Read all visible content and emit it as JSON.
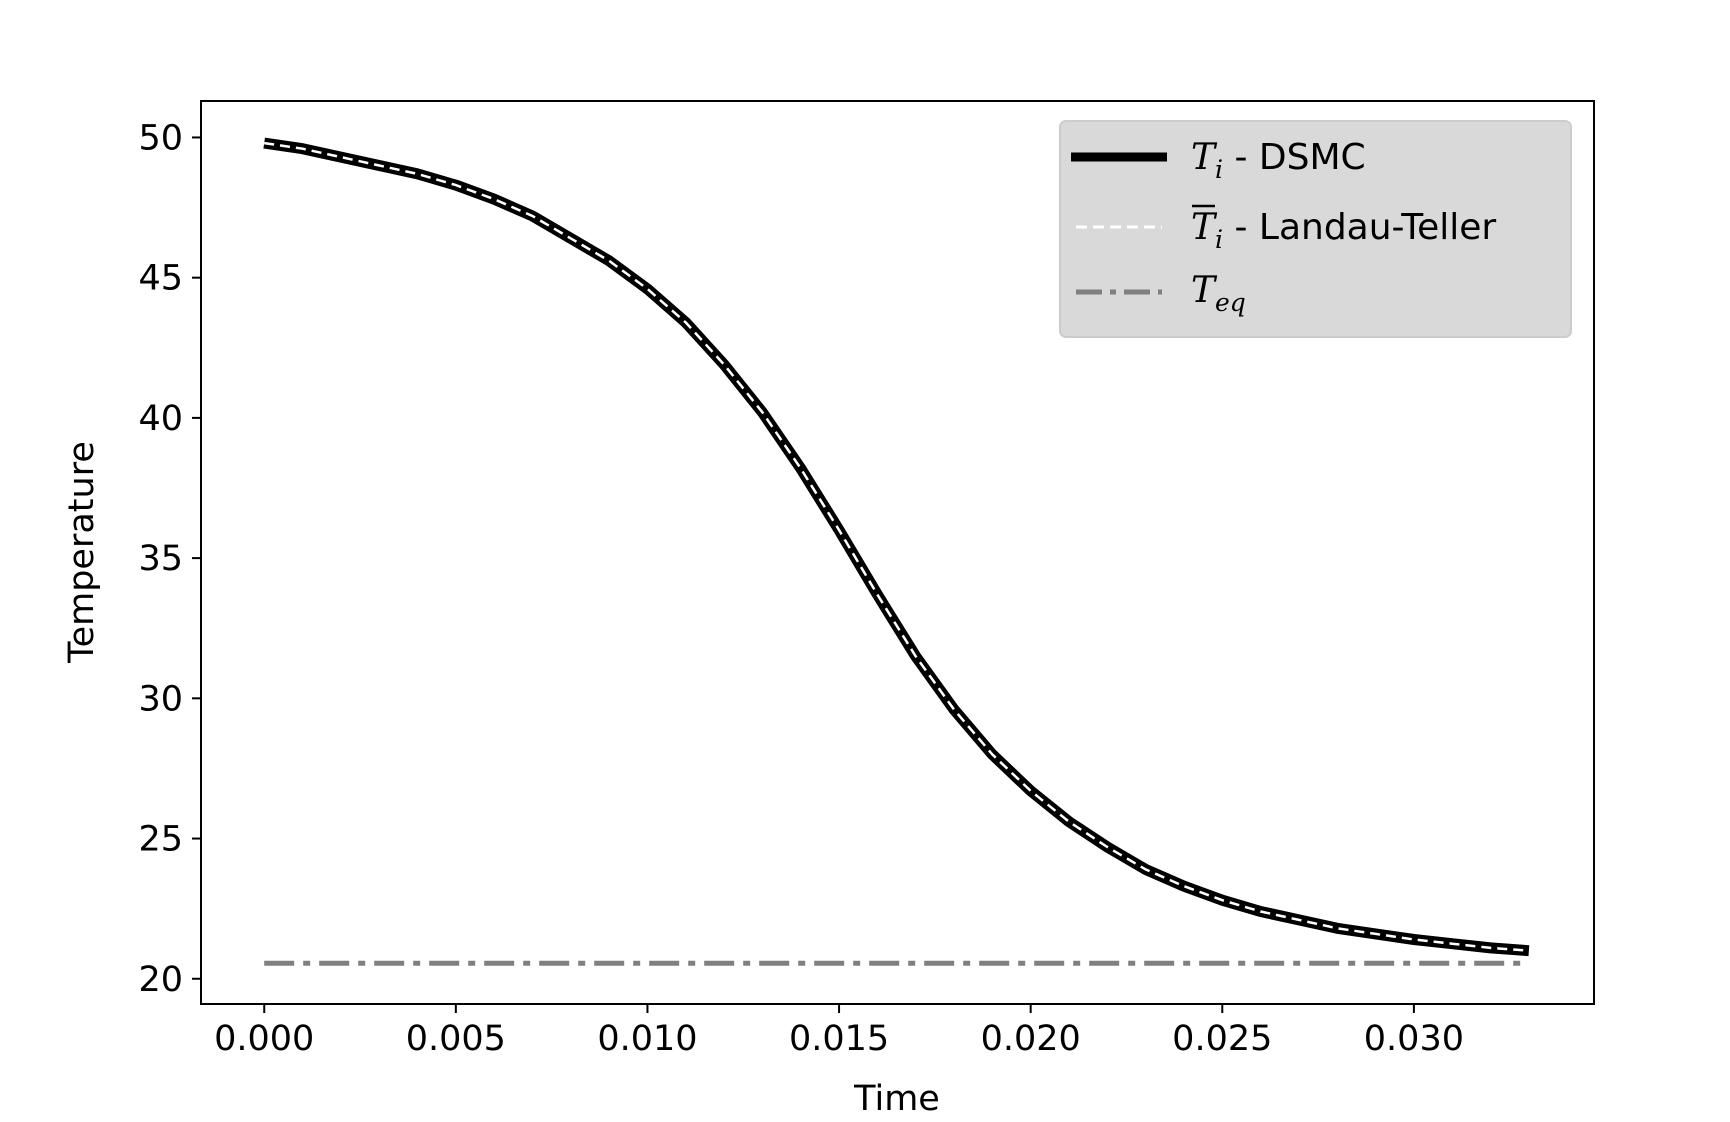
{
  "chart_data": {
    "type": "line",
    "xlabel": "Time",
    "ylabel": "Temperature",
    "xlim": [
      -0.00165,
      0.0347
    ],
    "ylim": [
      19.1,
      51.3
    ],
    "xticks": [
      0.0,
      0.005,
      0.01,
      0.015,
      0.02,
      0.025,
      0.03
    ],
    "xtick_labels": [
      "0.000",
      "0.005",
      "0.010",
      "0.015",
      "0.020",
      "0.025",
      "0.030"
    ],
    "yticks": [
      20,
      25,
      30,
      35,
      40,
      45,
      50
    ],
    "ytick_labels": [
      "20",
      "25",
      "30",
      "35",
      "40",
      "45",
      "50"
    ],
    "grid": false,
    "legend_placement": "upper right",
    "series": [
      {
        "name": "T_i - DSMC",
        "legend": {
          "symbol": "T",
          "sub": "i",
          "text": " - DSMC"
        },
        "color": "#000000",
        "style": "solid-thick",
        "x": [
          0.0,
          0.001,
          0.002,
          0.003,
          0.004,
          0.005,
          0.006,
          0.007,
          0.008,
          0.009,
          0.01,
          0.011,
          0.012,
          0.013,
          0.014,
          0.015,
          0.016,
          0.017,
          0.018,
          0.019,
          0.02,
          0.021,
          0.022,
          0.023,
          0.024,
          0.025,
          0.026,
          0.027,
          0.028,
          0.029,
          0.03,
          0.031,
          0.032,
          0.033
        ],
        "y": [
          49.8,
          49.6,
          49.3,
          49.0,
          48.7,
          48.3,
          47.8,
          47.2,
          46.4,
          45.6,
          44.6,
          43.4,
          41.9,
          40.2,
          38.2,
          36.0,
          33.7,
          31.5,
          29.6,
          28.0,
          26.7,
          25.6,
          24.7,
          23.9,
          23.3,
          22.8,
          22.4,
          22.1,
          21.8,
          21.6,
          21.4,
          21.25,
          21.1,
          21.0
        ]
      },
      {
        "name": "T̄_i - Landau-Teller",
        "legend": {
          "symbol": "T",
          "sub": "i",
          "text": " - Landau-Teller",
          "overline": true
        },
        "color": "#ffffff",
        "style": "dashed",
        "x": [
          0.0,
          0.001,
          0.002,
          0.003,
          0.004,
          0.005,
          0.006,
          0.007,
          0.008,
          0.009,
          0.01,
          0.011,
          0.012,
          0.013,
          0.014,
          0.015,
          0.016,
          0.017,
          0.018,
          0.019,
          0.02,
          0.021,
          0.022,
          0.023,
          0.024,
          0.025,
          0.026,
          0.027,
          0.028,
          0.029,
          0.03,
          0.031,
          0.032,
          0.033
        ],
        "y": [
          49.8,
          49.6,
          49.3,
          49.0,
          48.7,
          48.3,
          47.8,
          47.2,
          46.4,
          45.6,
          44.6,
          43.4,
          41.9,
          40.2,
          38.2,
          36.0,
          33.7,
          31.5,
          29.6,
          28.0,
          26.7,
          25.6,
          24.7,
          23.9,
          23.3,
          22.8,
          22.4,
          22.1,
          21.8,
          21.6,
          21.4,
          21.25,
          21.1,
          21.0
        ]
      },
      {
        "name": "T_eq",
        "legend": {
          "symbol": "T",
          "sub": "eq",
          "text": ""
        },
        "color": "#808080",
        "style": "dashdot",
        "x": [
          0.0,
          0.033
        ],
        "y": [
          20.55,
          20.55
        ]
      }
    ]
  }
}
